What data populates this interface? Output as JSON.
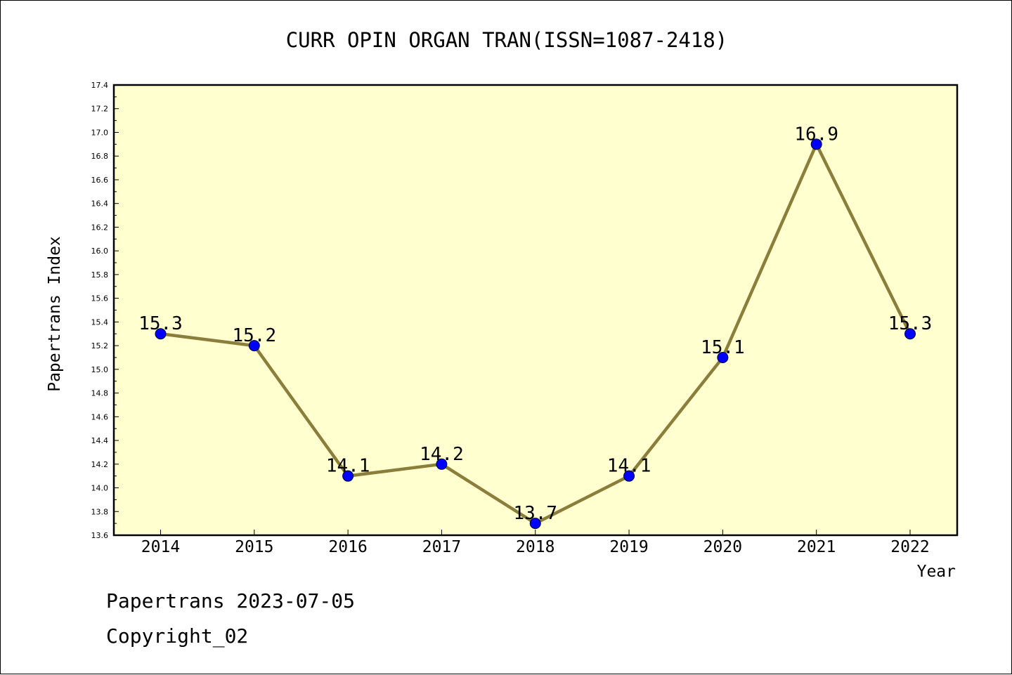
{
  "footer": {
    "line1": "Papertrans 2023-07-05",
    "line2": "Copyright_02"
  },
  "chart_data": {
    "type": "line",
    "title": "CURR OPIN ORGAN TRAN(ISSN=1087-2418)",
    "xlabel": "Year",
    "ylabel": "Papertrans Index",
    "categories": [
      "2014",
      "2015",
      "2016",
      "2017",
      "2018",
      "2019",
      "2020",
      "2021",
      "2022"
    ],
    "series": [
      {
        "values": [
          15.3,
          15.2,
          14.1,
          14.2,
          13.7,
          14.1,
          15.1,
          16.9,
          15.3
        ]
      }
    ],
    "data_labels": [
      "15.3",
      "15.2",
      "14.1",
      "14.2",
      "13.7",
      "14.1",
      "15.1",
      "16.9",
      "15.3"
    ],
    "ylim": [
      13.6,
      17.4
    ],
    "yticks": [
      "13.6",
      "13.8",
      "14.0",
      "14.2",
      "14.4",
      "14.6",
      "14.8",
      "15.0",
      "15.2",
      "15.4",
      "15.6",
      "15.8",
      "16.0",
      "16.2",
      "16.4",
      "16.6",
      "16.8",
      "17.0",
      "17.2",
      "17.4"
    ],
    "grid": false,
    "legend": "none",
    "colors": {
      "plot_background": "#ffffd0",
      "line": "#8b7d3a",
      "marker": "#0000ff",
      "axes": "#000000"
    }
  }
}
